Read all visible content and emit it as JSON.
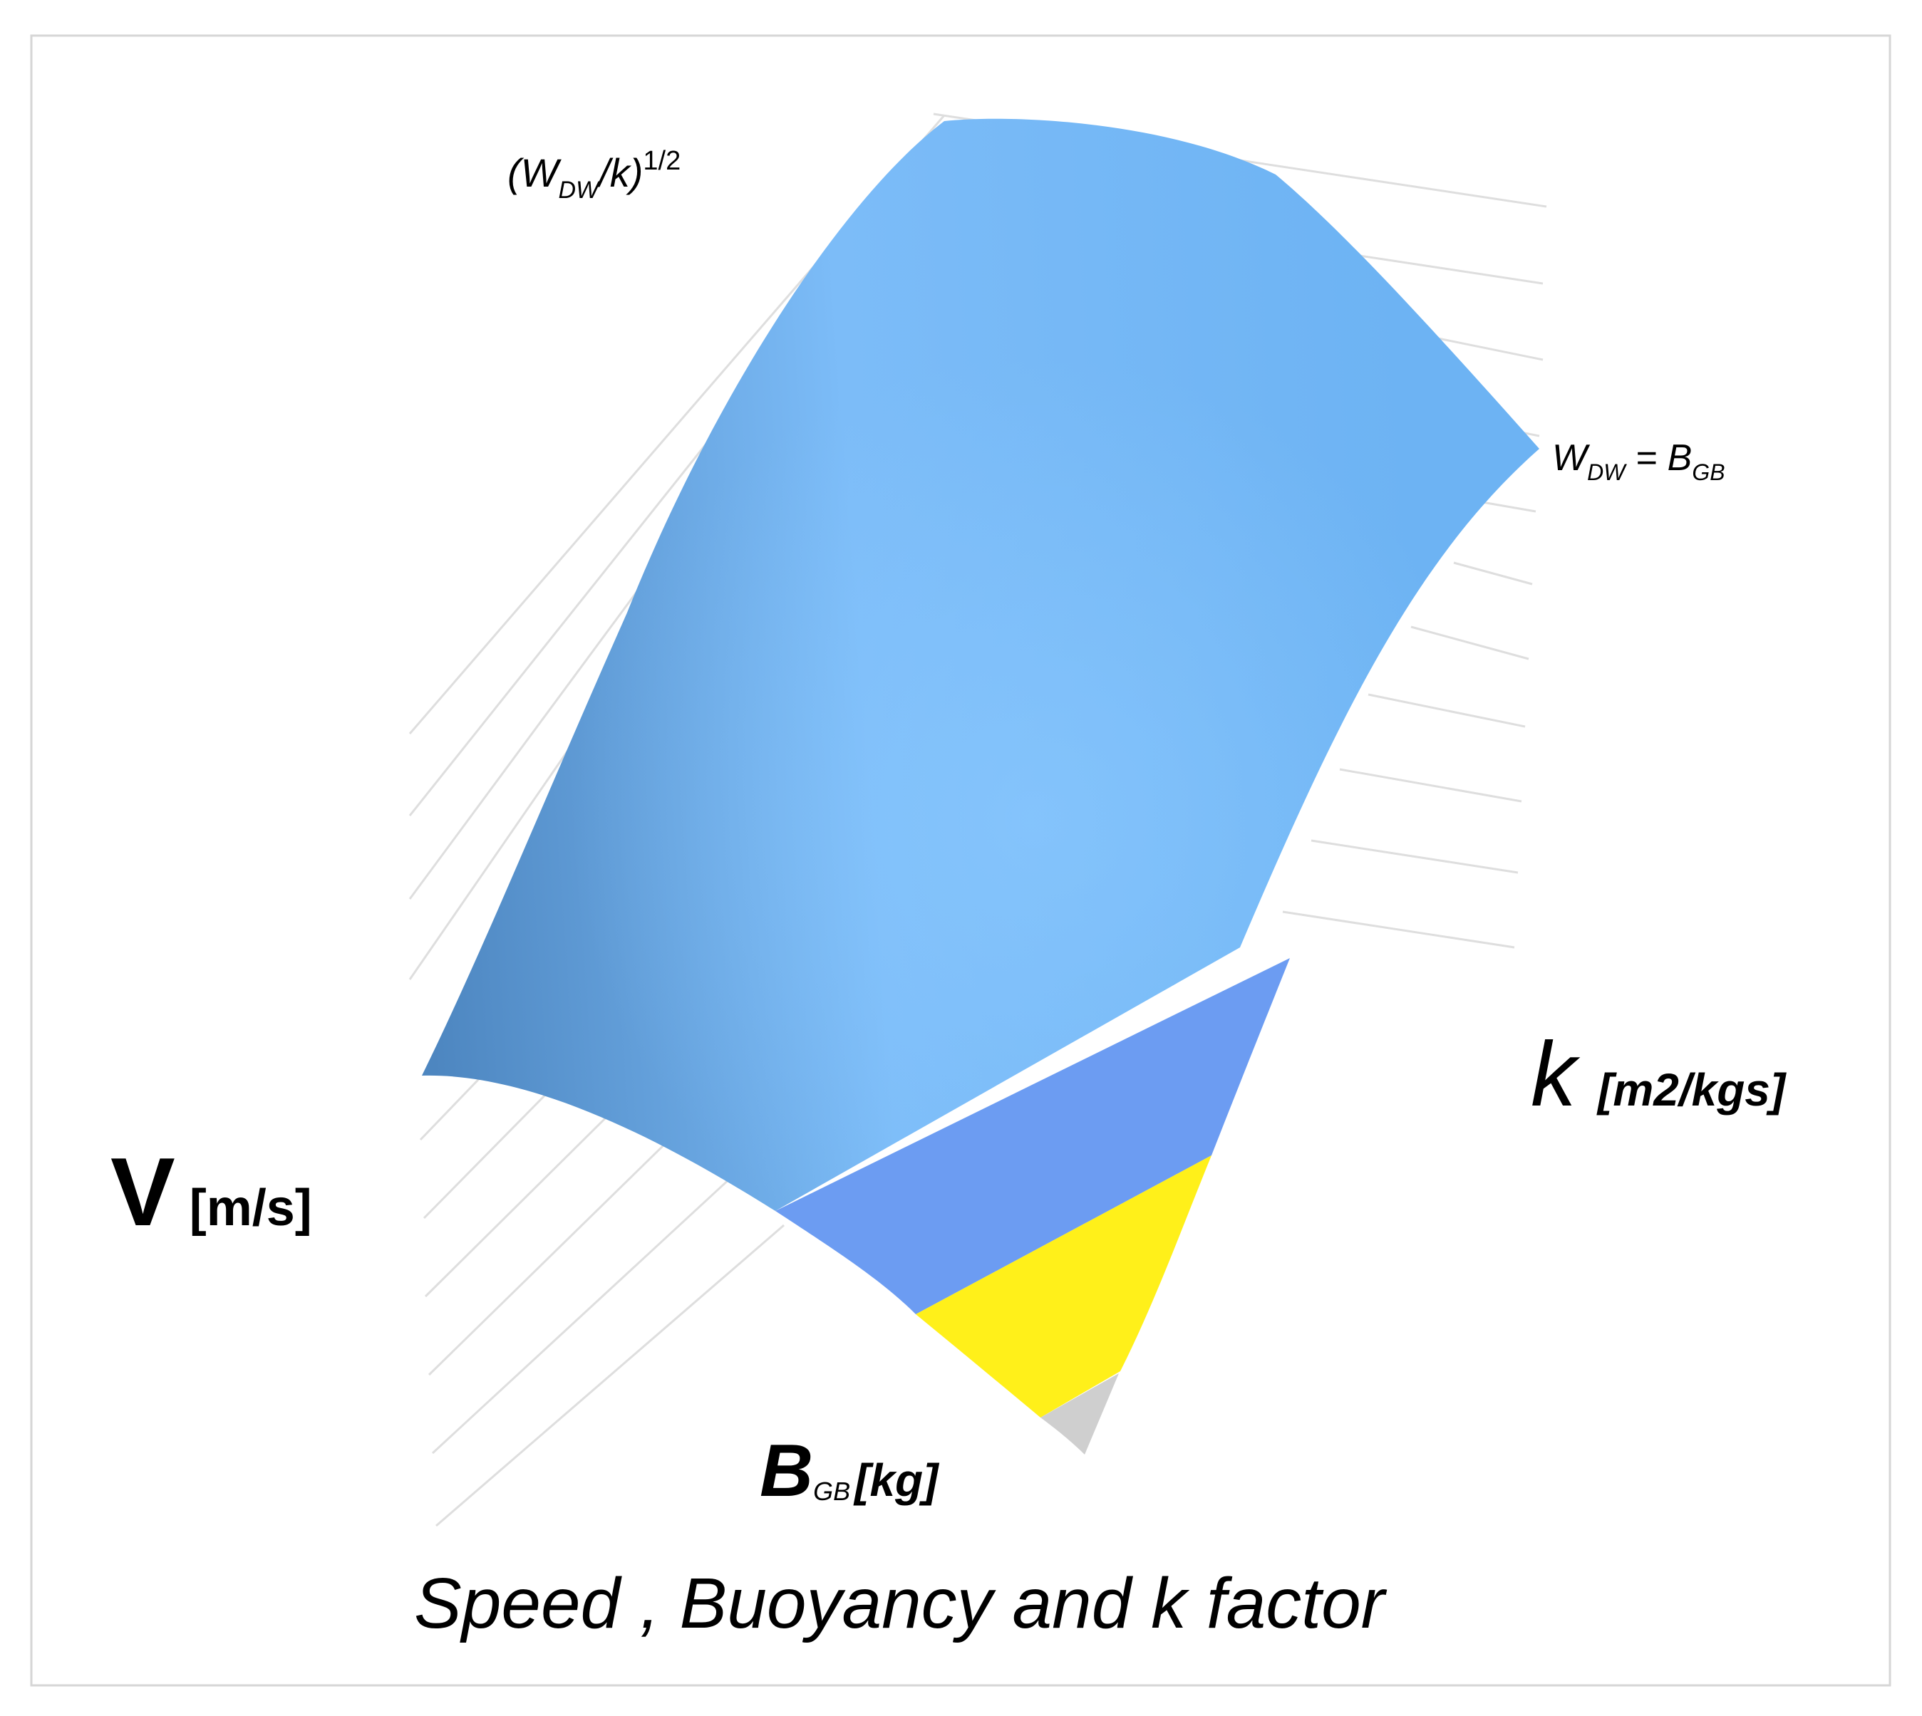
{
  "chart_data": {
    "type": "surface",
    "title": "Speed , Buoyancy and k factor",
    "axes": {
      "v": {
        "label": "V",
        "unit": "[m/s]"
      },
      "k": {
        "label": "k",
        "unit": "[m2/kgs]"
      },
      "b": {
        "label": "B",
        "subscript": "GB",
        "unit": "[kg]"
      }
    },
    "annotations": {
      "top_curve": {
        "pre": "(W",
        "sub": "DW",
        "mid": "/k)",
        "sup": "1/2"
      },
      "right_curve": {
        "w": "W",
        "w_sub": "DW",
        "eq": " = B",
        "b_sub": "GB"
      }
    },
    "bands": [
      {
        "color": "#6ea5e8"
      },
      {
        "color": "#6c9cf2"
      },
      {
        "color": "#fff01a"
      },
      {
        "color": "#cfcfcf"
      }
    ],
    "grid": true,
    "legend": "none"
  }
}
